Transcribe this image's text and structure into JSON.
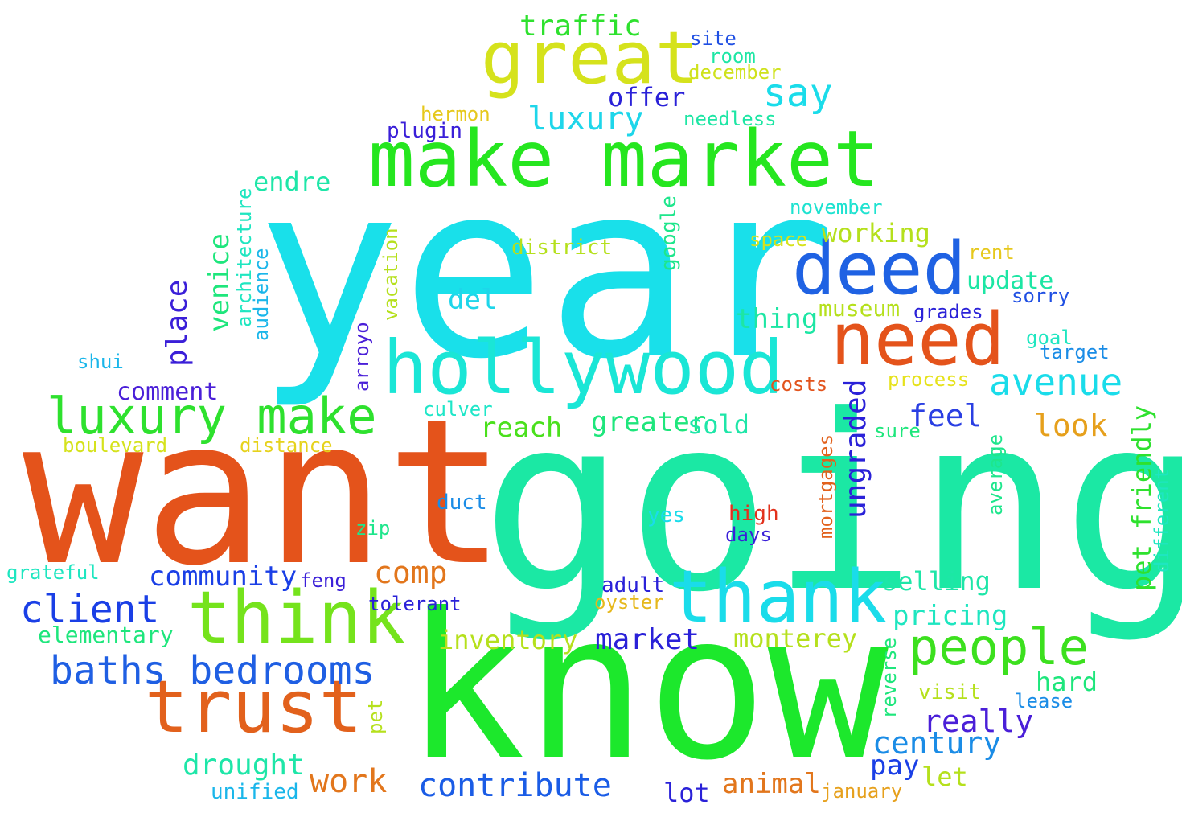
{
  "words": [
    {
      "text": "year",
      "color": "#19e0ea",
      "vertical": false
    },
    {
      "text": "going",
      "color": "#1be8a4",
      "vertical": false
    },
    {
      "text": "know",
      "color": "#1ce82c",
      "vertical": false
    },
    {
      "text": "want",
      "color": "#e4531b",
      "vertical": false
    },
    {
      "text": "make market",
      "color": "#25e61f",
      "vertical": false
    },
    {
      "text": "hollywood",
      "color": "#1ae6d6",
      "vertical": false
    },
    {
      "text": "great",
      "color": "#d5e21c",
      "vertical": false
    },
    {
      "text": "deed",
      "color": "#1f62e3",
      "vertical": false
    },
    {
      "text": "need",
      "color": "#e4531b",
      "vertical": false
    },
    {
      "text": "think",
      "color": "#75e31c",
      "vertical": false
    },
    {
      "text": "thank",
      "color": "#1adcea",
      "vertical": false
    },
    {
      "text": "trust",
      "color": "#e2611c",
      "vertical": false
    },
    {
      "text": "luxury make",
      "color": "#2ee12e",
      "vertical": false
    },
    {
      "text": "people",
      "color": "#3ce01e",
      "vertical": false
    },
    {
      "text": "baths bedrooms",
      "color": "#1f5fe3",
      "vertical": false
    },
    {
      "text": "client",
      "color": "#1a3fe6",
      "vertical": false
    },
    {
      "text": "say",
      "color": "#1adcea",
      "vertical": false
    },
    {
      "text": "luxury",
      "color": "#1ed6ea",
      "vertical": false
    },
    {
      "text": "traffic",
      "color": "#2ee12e",
      "vertical": false
    },
    {
      "text": "site",
      "color": "#1f4fe3",
      "vertical": false
    },
    {
      "text": "room",
      "color": "#1de6a4",
      "vertical": false
    },
    {
      "text": "december",
      "color": "#cfe21c",
      "vertical": false
    },
    {
      "text": "offer",
      "color": "#2a21d8",
      "vertical": false
    },
    {
      "text": "hermon",
      "color": "#e6c81c",
      "vertical": false
    },
    {
      "text": "needless",
      "color": "#1de6a4",
      "vertical": false
    },
    {
      "text": "plugin",
      "color": "#3a1fd8",
      "vertical": false
    },
    {
      "text": "endre",
      "color": "#1ee6a8",
      "vertical": false
    },
    {
      "text": "november",
      "color": "#1ee2d0",
      "vertical": false
    },
    {
      "text": "working",
      "color": "#b5e01c",
      "vertical": false
    },
    {
      "text": "space",
      "color": "#d6e21c",
      "vertical": false
    },
    {
      "text": "district",
      "color": "#b5e01c",
      "vertical": false
    },
    {
      "text": "rent",
      "color": "#e6c81c",
      "vertical": false
    },
    {
      "text": "update",
      "color": "#1de6a4",
      "vertical": false
    },
    {
      "text": "sorry",
      "color": "#1f4fe3",
      "vertical": false
    },
    {
      "text": "del",
      "color": "#1ed6ea",
      "vertical": false
    },
    {
      "text": "museum",
      "color": "#b5e01c",
      "vertical": false
    },
    {
      "text": "grades",
      "color": "#2a21d8",
      "vertical": false
    },
    {
      "text": "thing",
      "color": "#1de6a4",
      "vertical": false
    },
    {
      "text": "goal",
      "color": "#1ee6c0",
      "vertical": false
    },
    {
      "text": "target",
      "color": "#1a8ce6",
      "vertical": false
    },
    {
      "text": "avenue",
      "color": "#1adcea",
      "vertical": false
    },
    {
      "text": "process",
      "color": "#e6e21c",
      "vertical": false
    },
    {
      "text": "costs",
      "color": "#e2531c",
      "vertical": false
    },
    {
      "text": "shui",
      "color": "#1ab6ea",
      "vertical": false
    },
    {
      "text": "comment",
      "color": "#4a1fd8",
      "vertical": false
    },
    {
      "text": "feel",
      "color": "#2a3fe3",
      "vertical": false
    },
    {
      "text": "culver",
      "color": "#1ee6c8",
      "vertical": false
    },
    {
      "text": "greater",
      "color": "#1ee67c",
      "vertical": false
    },
    {
      "text": "sold",
      "color": "#1ee6a8",
      "vertical": false
    },
    {
      "text": "reach",
      "color": "#4ae01c",
      "vertical": false
    },
    {
      "text": "look",
      "color": "#e6a01c",
      "vertical": false
    },
    {
      "text": "sure",
      "color": "#1ee67c",
      "vertical": false
    },
    {
      "text": "boulevard",
      "color": "#d5e21c",
      "vertical": false
    },
    {
      "text": "distance",
      "color": "#e6d21c",
      "vertical": false
    },
    {
      "text": "duct",
      "color": "#1a8ce6",
      "vertical": false
    },
    {
      "text": "zip",
      "color": "#1ee68c",
      "vertical": false
    },
    {
      "text": "yes",
      "color": "#1adcea",
      "vertical": false
    },
    {
      "text": "high",
      "color": "#e2311c",
      "vertical": false
    },
    {
      "text": "days",
      "color": "#3a1fd8",
      "vertical": false
    },
    {
      "text": "grateful",
      "color": "#1ee6c0",
      "vertical": false
    },
    {
      "text": "community",
      "color": "#1a3fe6",
      "vertical": false
    },
    {
      "text": "feng",
      "color": "#3a1fd8",
      "vertical": false
    },
    {
      "text": "comp",
      "color": "#e2761c",
      "vertical": false
    },
    {
      "text": "tolerant",
      "color": "#2a21d8",
      "vertical": false
    },
    {
      "text": "adult",
      "color": "#2a21d8",
      "vertical": false
    },
    {
      "text": "oyster",
      "color": "#e6b81c",
      "vertical": false
    },
    {
      "text": "selling",
      "color": "#1ee6a8",
      "vertical": false
    },
    {
      "text": "pricing",
      "color": "#1ee6c0",
      "vertical": false
    },
    {
      "text": "elementary",
      "color": "#1ee67c",
      "vertical": false
    },
    {
      "text": "inventory",
      "color": "#b5e01c",
      "vertical": false
    },
    {
      "text": "market",
      "color": "#2a21d8",
      "vertical": false
    },
    {
      "text": "monterey",
      "color": "#b5e01c",
      "vertical": false
    },
    {
      "text": "hard",
      "color": "#1ee67c",
      "vertical": false
    },
    {
      "text": "visit",
      "color": "#b5e01c",
      "vertical": false
    },
    {
      "text": "lease",
      "color": "#1a8ce6",
      "vertical": false
    },
    {
      "text": "really",
      "color": "#4a1fd8",
      "vertical": false
    },
    {
      "text": "century",
      "color": "#1a8ce6",
      "vertical": false
    },
    {
      "text": "pay",
      "color": "#1a3fe6",
      "vertical": false
    },
    {
      "text": "let",
      "color": "#b5e01c",
      "vertical": false
    },
    {
      "text": "drought",
      "color": "#1ee6a8",
      "vertical": false
    },
    {
      "text": "work",
      "color": "#e2761c",
      "vertical": false
    },
    {
      "text": "contribute",
      "color": "#1a5ce6",
      "vertical": false
    },
    {
      "text": "animal",
      "color": "#e2761c",
      "vertical": false
    },
    {
      "text": "unified",
      "color": "#1ab6ea",
      "vertical": false
    },
    {
      "text": "lot",
      "color": "#2a21d8",
      "vertical": false
    },
    {
      "text": "january",
      "color": "#e6a01c",
      "vertical": false
    },
    {
      "text": "place",
      "color": "#3a1fd8",
      "vertical": true
    },
    {
      "text": "venice",
      "color": "#1ee67c",
      "vertical": true
    },
    {
      "text": "architecture",
      "color": "#1ee6c0",
      "vertical": true
    },
    {
      "text": "audience",
      "color": "#1ab6ea",
      "vertical": true
    },
    {
      "text": "vacation",
      "color": "#b5e01c",
      "vertical": true
    },
    {
      "text": "arroyo",
      "color": "#4a1fd8",
      "vertical": true
    },
    {
      "text": "google",
      "color": "#1ee68c",
      "vertical": true
    },
    {
      "text": "ungraded",
      "color": "#2a21d8",
      "vertical": true
    },
    {
      "text": "mortgages",
      "color": "#e2611c",
      "vertical": true
    },
    {
      "text": "average",
      "color": "#1ee68c",
      "vertical": true
    },
    {
      "text": "pet friendly",
      "color": "#2ee12e",
      "vertical": true
    },
    {
      "text": "different",
      "color": "#1ee6c0",
      "vertical": true
    },
    {
      "text": "reverse",
      "color": "#1ee67c",
      "vertical": true
    },
    {
      "text": "pet",
      "color": "#b5e01c",
      "vertical": true
    }
  ]
}
